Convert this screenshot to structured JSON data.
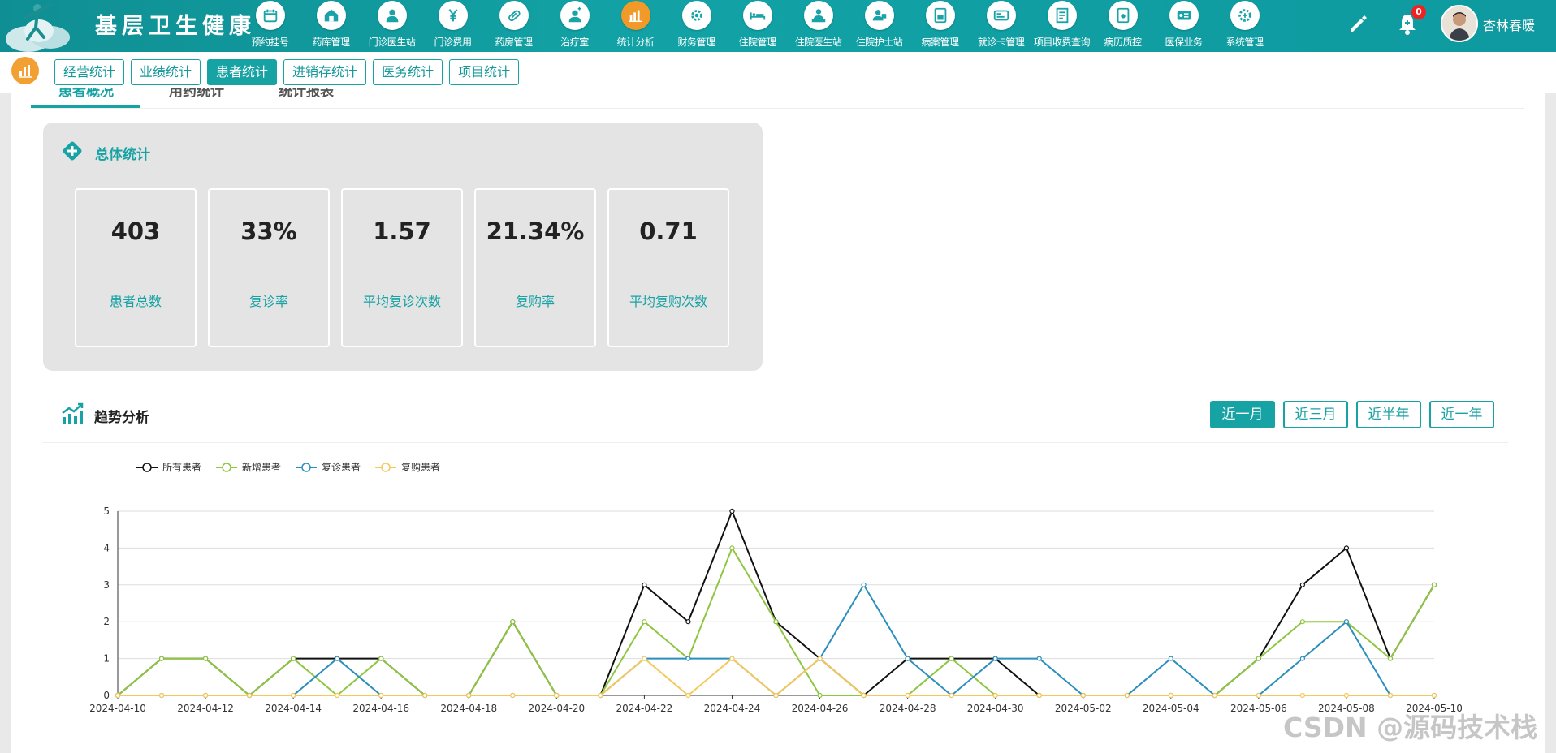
{
  "app": {
    "title": "基层卫生健康",
    "user_name": "杏林春暖",
    "notification_count": "0"
  },
  "nav": [
    {
      "label": "预约挂号",
      "icon": "calendar-icon",
      "active": false
    },
    {
      "label": "药库管理",
      "icon": "warehouse-icon",
      "active": false
    },
    {
      "label": "门诊医生站",
      "icon": "doctor-icon",
      "active": false
    },
    {
      "label": "门诊费用",
      "icon": "yen-icon",
      "active": false
    },
    {
      "label": "药房管理",
      "icon": "pill-icon",
      "active": false
    },
    {
      "label": "治疗室",
      "icon": "nurse-icon",
      "active": false
    },
    {
      "label": "统计分析",
      "icon": "bar-chart-icon",
      "active": true
    },
    {
      "label": "财务管理",
      "icon": "settings-icon",
      "active": false
    },
    {
      "label": "住院管理",
      "icon": "bed-icon",
      "active": false
    },
    {
      "label": "住院医生站",
      "icon": "doctor-card-icon",
      "active": false
    },
    {
      "label": "住院护士站",
      "icon": "nurse-card-icon",
      "active": false
    },
    {
      "label": "病案管理",
      "icon": "folder-icon",
      "active": false
    },
    {
      "label": "就诊卡管理",
      "icon": "card-icon",
      "active": false
    },
    {
      "label": "项目收费查询",
      "icon": "invoice-icon",
      "active": false
    },
    {
      "label": "病历质控",
      "icon": "record-icon",
      "active": false
    },
    {
      "label": "医保业务",
      "icon": "id-card-icon",
      "active": false
    },
    {
      "label": "系统管理",
      "icon": "gear-icon",
      "active": false
    }
  ],
  "subtabs": [
    {
      "label": "经营统计",
      "active": false
    },
    {
      "label": "业绩统计",
      "active": false
    },
    {
      "label": "患者统计",
      "active": true
    },
    {
      "label": "进销存统计",
      "active": false
    },
    {
      "label": "医务统计",
      "active": false
    },
    {
      "label": "项目统计",
      "active": false
    }
  ],
  "page_tabs": [
    "患者概况",
    "用药统计",
    "统计报表"
  ],
  "overall": {
    "title": "总体统计",
    "kpis": [
      {
        "value": "403",
        "label": "患者总数"
      },
      {
        "value": "33%",
        "label": "复诊率"
      },
      {
        "value": "1.57",
        "label": "平均复诊次数"
      },
      {
        "value": "21.34%",
        "label": "复购率"
      },
      {
        "value": "0.71",
        "label": "平均复购次数"
      }
    ]
  },
  "trend": {
    "title": "趋势分析",
    "ranges": [
      {
        "label": "近一月",
        "active": true
      },
      {
        "label": "近三月",
        "active": false
      },
      {
        "label": "近半年",
        "active": false
      },
      {
        "label": "近一年",
        "active": false
      }
    ]
  },
  "chart_data": {
    "type": "line",
    "x": [
      "2024-04-10",
      "2024-04-11",
      "2024-04-12",
      "2024-04-13",
      "2024-04-14",
      "2024-04-15",
      "2024-04-16",
      "2024-04-17",
      "2024-04-18",
      "2024-04-19",
      "2024-04-20",
      "2024-04-21",
      "2024-04-22",
      "2024-04-23",
      "2024-04-24",
      "2024-04-25",
      "2024-04-26",
      "2024-04-27",
      "2024-04-28",
      "2024-04-29",
      "2024-04-30",
      "2024-05-01",
      "2024-05-02",
      "2024-05-03",
      "2024-05-04",
      "2024-05-05",
      "2024-05-06",
      "2024-05-07",
      "2024-05-08",
      "2024-05-09",
      "2024-05-10"
    ],
    "x_tick_labels": [
      "2024-04-10",
      "2024-04-12",
      "2024-04-14",
      "2024-04-16",
      "2024-04-18",
      "2024-04-20",
      "2024-04-22",
      "2024-04-24",
      "2024-04-26",
      "2024-04-28",
      "2024-04-30",
      "2024-05-02",
      "2024-05-04",
      "2024-05-06",
      "2024-05-08",
      "2024-05-10"
    ],
    "ylim": [
      0,
      5
    ],
    "y_ticks": [
      0,
      1,
      2,
      3,
      4,
      5
    ],
    "grid": true,
    "legend_position": "top-left",
    "series": [
      {
        "name": "所有患者",
        "color": "#111111",
        "values": [
          0,
          1,
          1,
          0,
          1,
          1,
          1,
          0,
          0,
          2,
          0,
          0,
          3,
          2,
          5,
          2,
          1,
          0,
          1,
          1,
          1,
          0,
          0,
          0,
          0,
          0,
          1,
          3,
          4,
          1,
          3
        ]
      },
      {
        "name": "新增患者",
        "color": "#8dc63f",
        "values": [
          0,
          1,
          1,
          0,
          1,
          0,
          1,
          0,
          0,
          2,
          0,
          0,
          2,
          1,
          4,
          2,
          0,
          0,
          0,
          1,
          0,
          0,
          0,
          0,
          0,
          0,
          1,
          2,
          2,
          1,
          3
        ]
      },
      {
        "name": "复诊患者",
        "color": "#2b8fbd",
        "values": [
          0,
          0,
          0,
          0,
          0,
          1,
          0,
          0,
          0,
          0,
          0,
          0,
          1,
          1,
          1,
          0,
          1,
          3,
          1,
          0,
          1,
          1,
          0,
          0,
          1,
          0,
          0,
          1,
          2,
          0,
          0
        ]
      },
      {
        "name": "复购患者",
        "color": "#f5c85a",
        "values": [
          0,
          0,
          0,
          0,
          0,
          0,
          0,
          0,
          0,
          0,
          0,
          0,
          1,
          0,
          1,
          0,
          1,
          0,
          0,
          0,
          0,
          0,
          0,
          0,
          0,
          0,
          0,
          0,
          0,
          0,
          0
        ]
      }
    ]
  },
  "watermark": "CSDN @源码技术栈"
}
